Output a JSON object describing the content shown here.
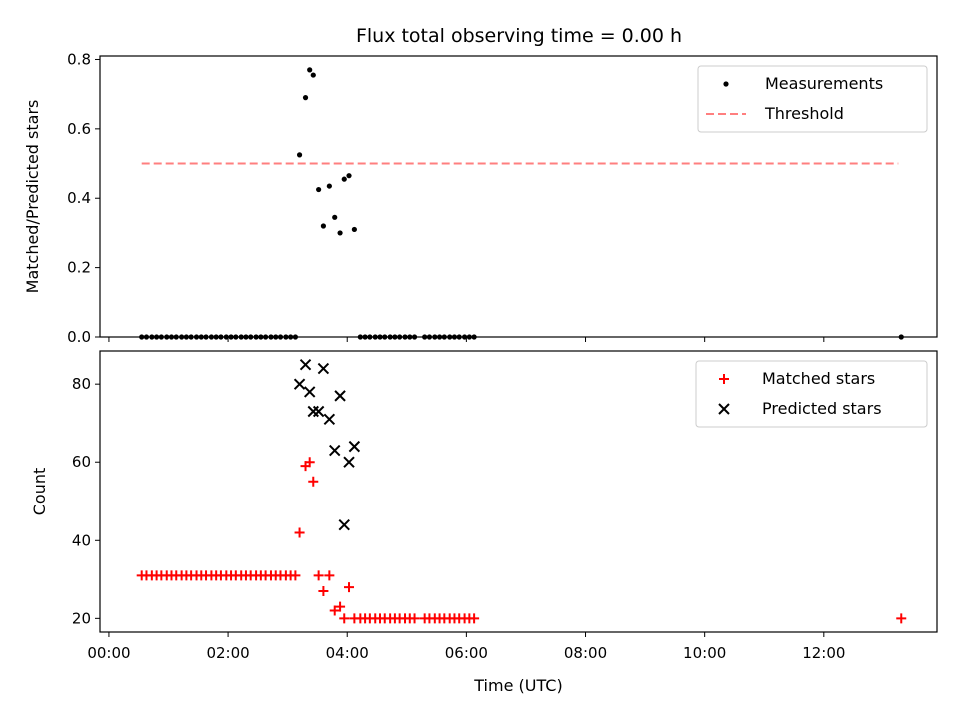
{
  "chart_data": [
    {
      "type": "scatter",
      "title": "Flux total observing time = 0.00 h",
      "xlabel": "",
      "ylabel": "Matched/Predicted stars",
      "xlim": [
        -0.15,
        13.9
      ],
      "ylim": [
        0,
        0.81
      ],
      "yticks": [
        0.0,
        0.2,
        0.4,
        0.6,
        0.8
      ],
      "ytick_labels": [
        "0.0",
        "0.2",
        "0.4",
        "0.6",
        "0.8"
      ],
      "legend": {
        "position": "upper right",
        "entries": [
          {
            "label": "Measurements",
            "color": "#000000",
            "marker": "dot"
          },
          {
            "label": "Threshold",
            "color": "#ff7f7f",
            "marker": "dashed-line"
          }
        ]
      },
      "series": [
        {
          "name": "Measurements",
          "color": "#000000",
          "points": [
            [
              0.55,
              0
            ],
            [
              0.63,
              0
            ],
            [
              0.72,
              0
            ],
            [
              0.8,
              0
            ],
            [
              0.88,
              0
            ],
            [
              0.97,
              0
            ],
            [
              1.05,
              0
            ],
            [
              1.13,
              0
            ],
            [
              1.22,
              0
            ],
            [
              1.3,
              0
            ],
            [
              1.38,
              0
            ],
            [
              1.47,
              0
            ],
            [
              1.55,
              0
            ],
            [
              1.63,
              0
            ],
            [
              1.72,
              0
            ],
            [
              1.8,
              0
            ],
            [
              1.88,
              0
            ],
            [
              1.97,
              0
            ],
            [
              2.05,
              0
            ],
            [
              2.13,
              0
            ],
            [
              2.22,
              0
            ],
            [
              2.3,
              0
            ],
            [
              2.38,
              0
            ],
            [
              2.47,
              0
            ],
            [
              2.55,
              0
            ],
            [
              2.63,
              0
            ],
            [
              2.72,
              0
            ],
            [
              2.8,
              0
            ],
            [
              2.88,
              0
            ],
            [
              2.97,
              0
            ],
            [
              3.05,
              0
            ],
            [
              3.13,
              0
            ],
            [
              3.2,
              0.525
            ],
            [
              3.3,
              0.69
            ],
            [
              3.37,
              0.77
            ],
            [
              3.43,
              0.755
            ],
            [
              3.52,
              0.425
            ],
            [
              3.6,
              0.32
            ],
            [
              3.7,
              0.435
            ],
            [
              3.79,
              0.345
            ],
            [
              3.88,
              0.3
            ],
            [
              3.95,
              0.455
            ],
            [
              4.03,
              0.465
            ],
            [
              4.12,
              0.31
            ],
            [
              4.22,
              0
            ],
            [
              4.3,
              0
            ],
            [
              4.38,
              0
            ],
            [
              4.47,
              0
            ],
            [
              4.55,
              0
            ],
            [
              4.63,
              0
            ],
            [
              4.72,
              0
            ],
            [
              4.8,
              0
            ],
            [
              4.88,
              0
            ],
            [
              4.97,
              0
            ],
            [
              5.05,
              0
            ],
            [
              5.13,
              0
            ],
            [
              5.3,
              0
            ],
            [
              5.38,
              0
            ],
            [
              5.47,
              0
            ],
            [
              5.55,
              0
            ],
            [
              5.63,
              0
            ],
            [
              5.72,
              0
            ],
            [
              5.8,
              0
            ],
            [
              5.88,
              0
            ],
            [
              5.97,
              0
            ],
            [
              6.05,
              0
            ],
            [
              6.13,
              0
            ],
            [
              13.3,
              0
            ]
          ]
        },
        {
          "name": "Threshold",
          "color": "#ff7f7f",
          "style": "dashed",
          "points": [
            [
              0.55,
              0.5
            ],
            [
              13.25,
              0.5
            ]
          ]
        }
      ]
    },
    {
      "type": "scatter",
      "title": "",
      "xlabel": "Time (UTC)",
      "ylabel": "Count",
      "xlim": [
        -0.15,
        13.9
      ],
      "ylim": [
        16.5,
        88.5
      ],
      "yticks": [
        20,
        40,
        60,
        80
      ],
      "ytick_labels": [
        "20",
        "40",
        "60",
        "80"
      ],
      "xticks": [
        0,
        2,
        4,
        6,
        8,
        10,
        12
      ],
      "xtick_labels": [
        "00:00",
        "02:00",
        "04:00",
        "06:00",
        "08:00",
        "10:00",
        "12:00"
      ],
      "legend": {
        "position": "upper right",
        "entries": [
          {
            "label": "Matched stars",
            "color": "#ff0000",
            "marker": "plus"
          },
          {
            "label": "Predicted stars",
            "color": "#000000",
            "marker": "x"
          }
        ]
      },
      "series": [
        {
          "name": "Matched stars",
          "color": "#ff0000",
          "marker": "plus",
          "points": [
            [
              0.55,
              31
            ],
            [
              0.63,
              31
            ],
            [
              0.72,
              31
            ],
            [
              0.8,
              31
            ],
            [
              0.88,
              31
            ],
            [
              0.97,
              31
            ],
            [
              1.05,
              31
            ],
            [
              1.13,
              31
            ],
            [
              1.22,
              31
            ],
            [
              1.3,
              31
            ],
            [
              1.38,
              31
            ],
            [
              1.47,
              31
            ],
            [
              1.55,
              31
            ],
            [
              1.63,
              31
            ],
            [
              1.72,
              31
            ],
            [
              1.8,
              31
            ],
            [
              1.88,
              31
            ],
            [
              1.97,
              31
            ],
            [
              2.05,
              31
            ],
            [
              2.13,
              31
            ],
            [
              2.22,
              31
            ],
            [
              2.3,
              31
            ],
            [
              2.38,
              31
            ],
            [
              2.47,
              31
            ],
            [
              2.55,
              31
            ],
            [
              2.63,
              31
            ],
            [
              2.72,
              31
            ],
            [
              2.8,
              31
            ],
            [
              2.88,
              31
            ],
            [
              2.97,
              31
            ],
            [
              3.05,
              31
            ],
            [
              3.13,
              31
            ],
            [
              3.2,
              42
            ],
            [
              3.3,
              59
            ],
            [
              3.37,
              60
            ],
            [
              3.43,
              55
            ],
            [
              3.52,
              31
            ],
            [
              3.6,
              27
            ],
            [
              3.7,
              31
            ],
            [
              3.79,
              22
            ],
            [
              3.88,
              23
            ],
            [
              3.95,
              20
            ],
            [
              4.03,
              28
            ],
            [
              4.12,
              20
            ],
            [
              4.22,
              20
            ],
            [
              4.3,
              20
            ],
            [
              4.38,
              20
            ],
            [
              4.47,
              20
            ],
            [
              4.55,
              20
            ],
            [
              4.63,
              20
            ],
            [
              4.72,
              20
            ],
            [
              4.8,
              20
            ],
            [
              4.88,
              20
            ],
            [
              4.97,
              20
            ],
            [
              5.05,
              20
            ],
            [
              5.13,
              20
            ],
            [
              5.3,
              20
            ],
            [
              5.38,
              20
            ],
            [
              5.47,
              20
            ],
            [
              5.55,
              20
            ],
            [
              5.63,
              20
            ],
            [
              5.72,
              20
            ],
            [
              5.8,
              20
            ],
            [
              5.88,
              20
            ],
            [
              5.97,
              20
            ],
            [
              6.05,
              20
            ],
            [
              6.13,
              20
            ],
            [
              13.3,
              20
            ]
          ]
        },
        {
          "name": "Predicted stars",
          "color": "#000000",
          "marker": "x",
          "points": [
            [
              3.2,
              80
            ],
            [
              3.3,
              85
            ],
            [
              3.37,
              78
            ],
            [
              3.43,
              73
            ],
            [
              3.52,
              73
            ],
            [
              3.6,
              84
            ],
            [
              3.7,
              71
            ],
            [
              3.79,
              63
            ],
            [
              3.88,
              77
            ],
            [
              3.95,
              44
            ],
            [
              4.03,
              60
            ],
            [
              4.12,
              64
            ]
          ]
        }
      ]
    }
  ]
}
